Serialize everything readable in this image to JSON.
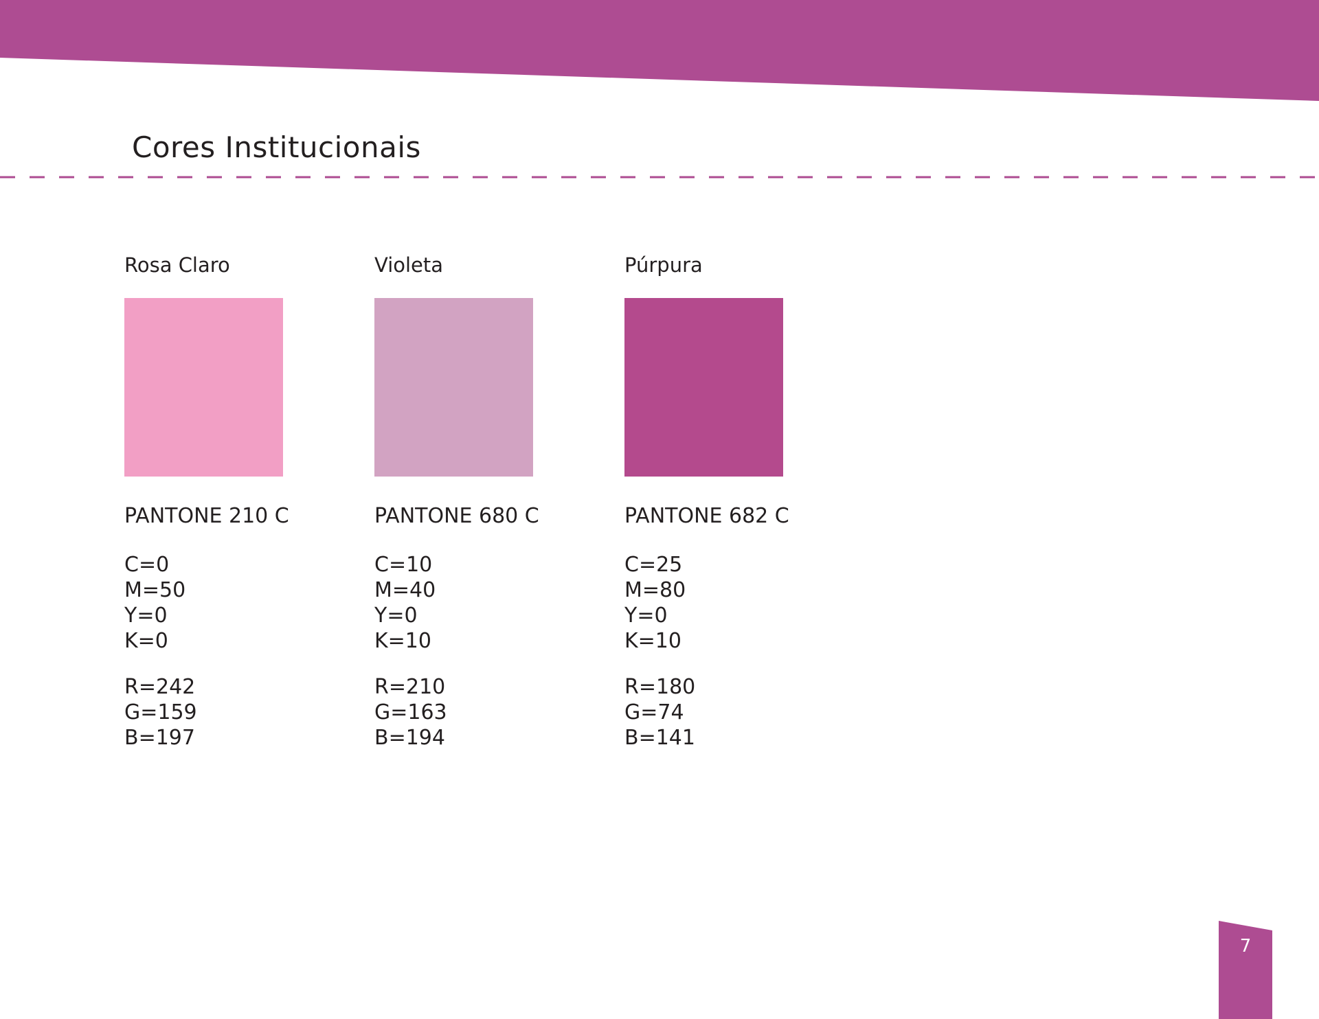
{
  "page": {
    "title": "Cores Institucionais",
    "number": "7",
    "accent_color": "#ae4c92"
  },
  "swatches": [
    {
      "name": "Rosa Claro",
      "color": "#f29fc5",
      "pantone": "PANTONE 210 C",
      "cmyk": [
        "C=0",
        "M=50",
        "Y=0",
        "K=0"
      ],
      "rgb": [
        "R=242",
        "G=159",
        "B=197"
      ]
    },
    {
      "name": "Violeta",
      "color": "#d2a3c2",
      "pantone": "PANTONE 680 C",
      "cmyk": [
        "C=10",
        "M=40",
        "Y=0",
        "K=10"
      ],
      "rgb": [
        "R=210",
        "G=163",
        "B=194"
      ]
    },
    {
      "name": "Púrpura",
      "color": "#b44a8d",
      "pantone": "PANTONE 682 C",
      "cmyk": [
        "C=25",
        "M=80",
        "Y=0",
        "K=10"
      ],
      "rgb": [
        "R=180",
        "G=74",
        "B=141"
      ]
    }
  ]
}
